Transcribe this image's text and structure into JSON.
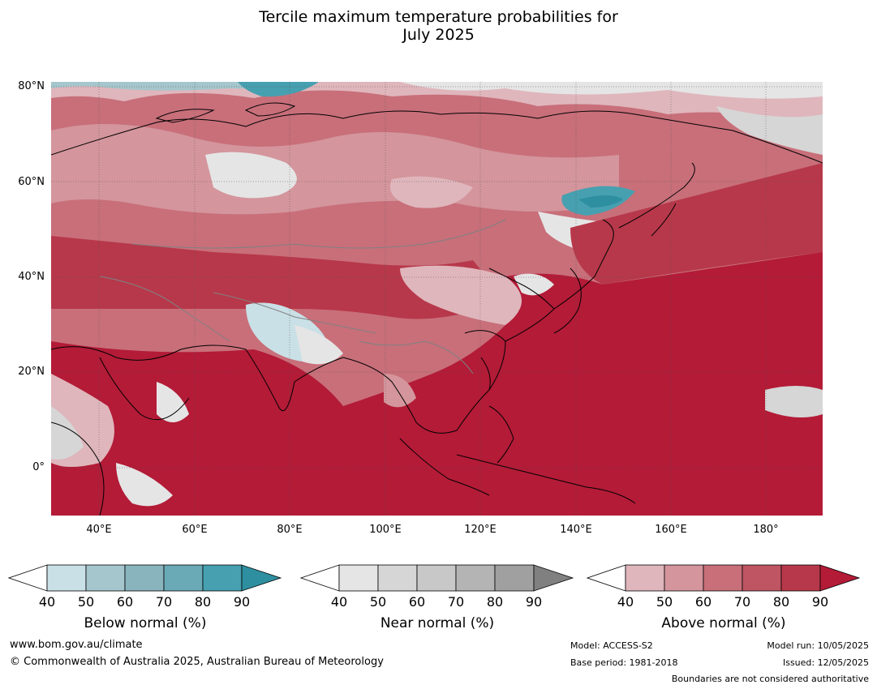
{
  "title": {
    "line1": "Tercile maximum temperature probabilities for",
    "line2": "July 2025"
  },
  "map": {
    "lat_labels": [
      "80°N",
      "60°N",
      "40°N",
      "20°N",
      "0°"
    ],
    "lon_labels": [
      "40°E",
      "60°E",
      "80°E",
      "100°E",
      "120°E",
      "140°E",
      "160°E",
      "180°"
    ],
    "colors": {
      "above": [
        "#dfb6bc",
        "#d4959c",
        "#c86f7a",
        "#bf5563",
        "#b7384a",
        "#b31b37"
      ],
      "near": [
        "#e5e5e5",
        "#d6d6d6",
        "#c8c8c8",
        "#b4b4b4",
        "#a0a0a0",
        "#808080"
      ],
      "below": [
        "#c9e0e6",
        "#a5c6cc",
        "#89b4be",
        "#6aa9b6",
        "#46a0b0",
        "#2e8fa0"
      ]
    }
  },
  "legends": [
    {
      "label": "Below normal (%)",
      "ticks": [
        "40",
        "50",
        "60",
        "70",
        "80",
        "90"
      ],
      "colors": [
        "#c9e0e6",
        "#a5c6cc",
        "#89b4be",
        "#6aa9b6",
        "#46a0b0",
        "#2e8fa0"
      ]
    },
    {
      "label": "Near normal (%)",
      "ticks": [
        "40",
        "50",
        "60",
        "70",
        "80",
        "90"
      ],
      "colors": [
        "#e5e5e5",
        "#d6d6d6",
        "#c8c8c8",
        "#b4b4b4",
        "#a0a0a0",
        "#808080"
      ]
    },
    {
      "label": "Above normal (%)",
      "ticks": [
        "40",
        "50",
        "60",
        "70",
        "80",
        "90"
      ],
      "colors": [
        "#dfb6bc",
        "#d4959c",
        "#c86f7a",
        "#bf5563",
        "#b7384a",
        "#b31b37"
      ]
    }
  ],
  "footer": {
    "website": "www.bom.gov.au/climate",
    "copyright": "© Commonwealth of Australia 2025, Australian Bureau of Meteorology",
    "model": "Model: ACCESS-S2",
    "base_period": "Base period: 1981-2018",
    "model_run": "Model run: 10/05/2025",
    "issued": "Issued: 12/05/2025",
    "disclaimer": "Boundaries are not considered authoritative"
  }
}
